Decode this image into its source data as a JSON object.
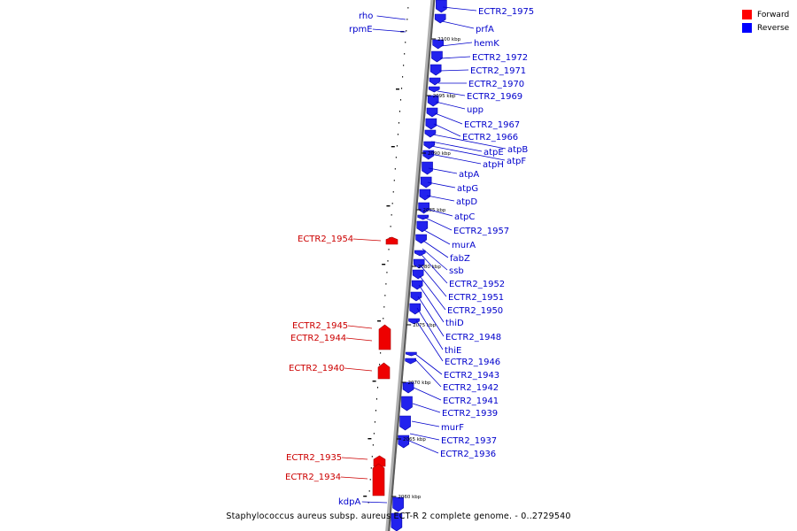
{
  "caption": "Staphylococcus aureus subsp. aureus ECT-R 2 complete genome. - 0..2729540",
  "legend": [
    {
      "label": "Forward",
      "color": "#ff0000"
    },
    {
      "label": "Reverse",
      "color": "#0000ff"
    }
  ],
  "colors": {
    "forward": "#ee0000",
    "reverse": "#2222ee",
    "label_forward": "#cc0000",
    "label_reverse": "#0000cc",
    "backbone": "#888888"
  },
  "ticks": [
    "2100 kbp",
    "2095 kbp",
    "2090 kbp",
    "2085 kbp",
    "2080 kbp",
    "2075 kbp",
    "2070 kbp",
    "2065 kbp",
    "2060 kbp"
  ],
  "reverse_genes": [
    "ECTR2_1975",
    "prfA",
    "hemK",
    "ECTR2_1972",
    "ECTR2_1971",
    "ECTR2_1970",
    "ECTR2_1969",
    "upp",
    "ECTR2_1967",
    "ECTR2_1966",
    "atpB",
    "atpE",
    "atpF",
    "atpH",
    "atpA",
    "atpG",
    "atpD",
    "atpC",
    "ECTR2_1957",
    "murA",
    "fabZ",
    "ssb",
    "ECTR2_1952",
    "ECTR2_1951",
    "ECTR2_1950",
    "thiD",
    "ECTR2_1948",
    "thiE",
    "ECTR2_1946",
    "ECTR2_1943",
    "ECTR2_1942",
    "ECTR2_1941",
    "ECTR2_1939",
    "murF",
    "ECTR2_1937",
    "ECTR2_1936",
    "rho",
    "rpmE",
    "kdpA"
  ],
  "forward_genes": [
    "ECTR2_1954",
    "ECTR2_1945",
    "ECTR2_1944",
    "ECTR2_1940",
    "ECTR2_1935",
    "ECTR2_1934"
  ]
}
